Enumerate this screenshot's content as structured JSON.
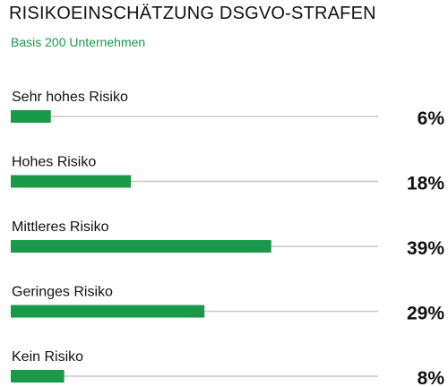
{
  "chart_data": {
    "type": "bar",
    "orientation": "horizontal",
    "title": "RISIKOEINSCHÄTZUNG DSGVO-STRAFEN",
    "subtitle": "Basis 200 Unternehmen",
    "categories": [
      "Sehr hohes Risiko",
      "Hohes Risiko",
      "Mittleres Risiko",
      "Geringes Risiko",
      "Kein Risiko"
    ],
    "values": [
      6,
      18,
      39,
      29,
      8
    ],
    "value_labels": [
      "6%",
      "18%",
      "39%",
      "29%",
      "8%"
    ],
    "unit": "%",
    "xlim": [
      0,
      55
    ],
    "grid": false,
    "legend": "none"
  },
  "colors": {
    "bar": "#1a9a48",
    "track": "#c8c8c8",
    "subtitle": "#1a9a48",
    "text": "#111111"
  }
}
